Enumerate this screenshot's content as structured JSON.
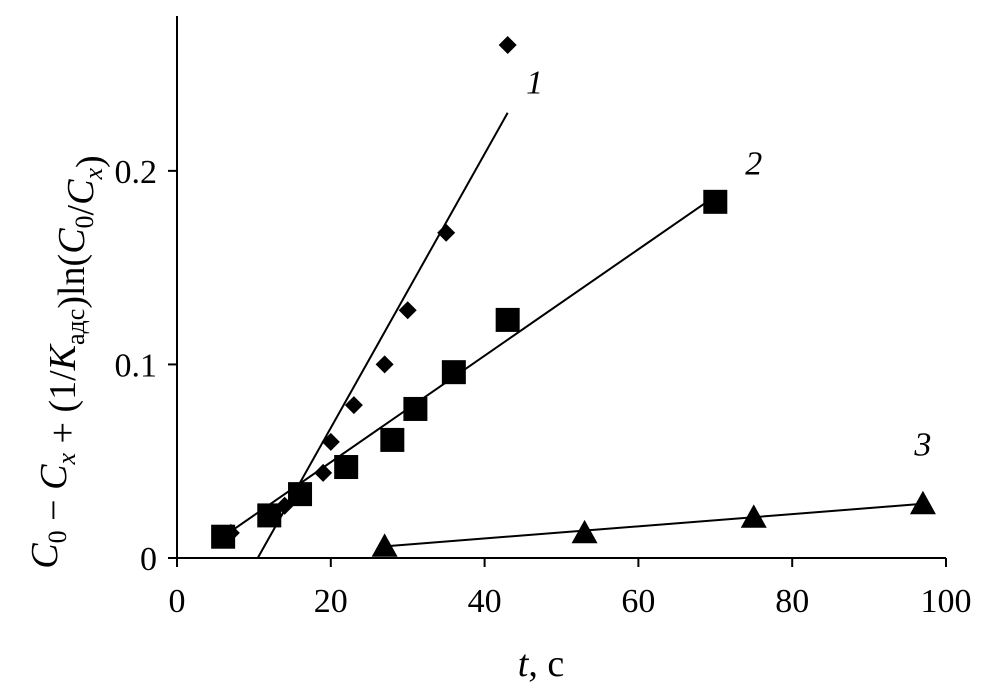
{
  "chart_data": {
    "type": "scatter",
    "xlabel": {
      "var": "t",
      "unit": ", с"
    },
    "ylabel": {
      "parts": [
        {
          "text": "C",
          "italic": true
        },
        {
          "text": "0",
          "sub": true
        },
        {
          "text": " − ",
          "italic": false
        },
        {
          "text": "C",
          "italic": true
        },
        {
          "text": "x",
          "sub": true,
          "italic": true
        },
        {
          "text": " + (1/",
          "italic": false
        },
        {
          "text": "K",
          "italic": true
        },
        {
          "text": "адс",
          "sub": true
        },
        {
          "text": ")ln(",
          "italic": false
        },
        {
          "text": "C",
          "italic": true
        },
        {
          "text": "0",
          "sub": true
        },
        {
          "text": "/",
          "italic": false
        },
        {
          "text": "C",
          "italic": true
        },
        {
          "text": "x",
          "sub": true,
          "italic": true
        },
        {
          "text": ")",
          "italic": false
        }
      ]
    },
    "xlim": [
      0,
      100
    ],
    "ylim": [
      0,
      0.28
    ],
    "x_ticks": [
      0,
      20,
      40,
      60,
      80,
      100
    ],
    "x_tick_labels": [
      "0",
      "20",
      "40",
      "60",
      "80",
      "100"
    ],
    "y_ticks": [
      0,
      0.1,
      0.2
    ],
    "y_tick_labels": [
      "0",
      "0.1",
      "0.2"
    ],
    "grid": false,
    "legend": "none",
    "series": [
      {
        "name": "1",
        "marker": "diamond",
        "points": [
          [
            7,
            0.013
          ],
          [
            14,
            0.027
          ],
          [
            19,
            0.044
          ],
          [
            20,
            0.06
          ],
          [
            23,
            0.079
          ],
          [
            27,
            0.1
          ],
          [
            30,
            0.128
          ],
          [
            35,
            0.168
          ],
          [
            43,
            0.265
          ]
        ],
        "fit": {
          "from": [
            10.5,
            0
          ],
          "to": [
            43,
            0.23
          ]
        },
        "label_pos": [
          46.5,
          0.24
        ]
      },
      {
        "name": "2",
        "marker": "square",
        "points": [
          [
            6,
            0.011
          ],
          [
            12,
            0.022
          ],
          [
            16,
            0.033
          ],
          [
            22,
            0.047
          ],
          [
            28,
            0.061
          ],
          [
            31,
            0.077
          ],
          [
            36,
            0.096
          ],
          [
            43,
            0.123
          ],
          [
            70,
            0.184
          ]
        ],
        "fit": {
          "from": [
            6,
            0.011
          ],
          "to": [
            70,
            0.187
          ]
        },
        "label_pos": [
          75,
          0.198
        ]
      },
      {
        "name": "3",
        "marker": "triangle",
        "points": [
          [
            27,
            0.006
          ],
          [
            53,
            0.013
          ],
          [
            75,
            0.021
          ],
          [
            97,
            0.028
          ]
        ],
        "fit": {
          "from": [
            27,
            0.006
          ],
          "to": [
            97,
            0.028
          ]
        },
        "label_pos": [
          97,
          0.053
        ]
      }
    ],
    "colors": {
      "ink": "#000000",
      "background": "#ffffff"
    }
  }
}
